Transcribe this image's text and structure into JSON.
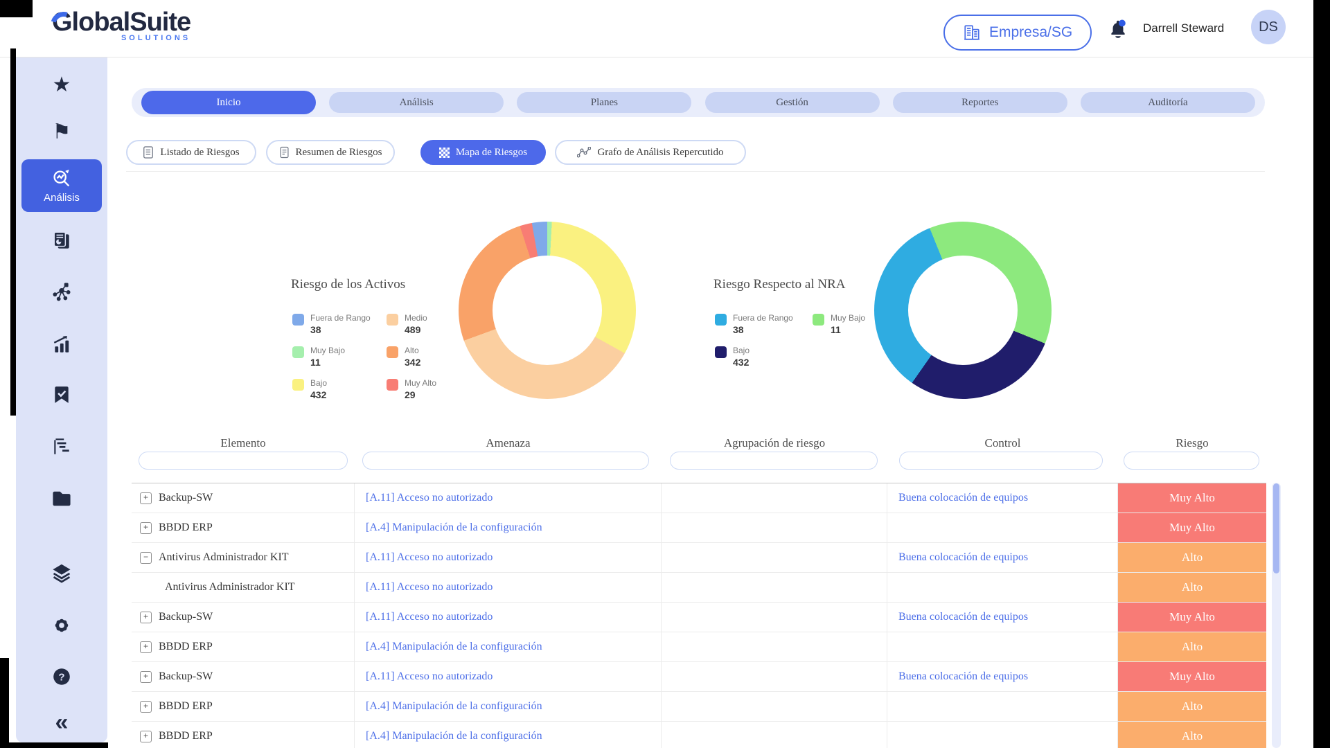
{
  "header": {
    "logo_text": "GlobalSuite",
    "logo_subtext": "SOLUTIONS",
    "company_button_label": "Empresa/SG",
    "user_name": "Darrell Steward",
    "avatar_initials": "DS",
    "accent_color": "#4a6fe8"
  },
  "sidebar": {
    "active_item_label": "Análisis",
    "icons": [
      "star",
      "flag",
      "analysis",
      "report",
      "network",
      "bar-chart",
      "bookmark-check",
      "gantt",
      "folder",
      "layers",
      "gear",
      "help",
      "collapse"
    ]
  },
  "tabs": [
    {
      "label": "Inicio",
      "active": true
    },
    {
      "label": "Análisis",
      "active": false
    },
    {
      "label": "Planes",
      "active": false
    },
    {
      "label": "Gestión",
      "active": false
    },
    {
      "label": "Reportes",
      "active": false
    },
    {
      "label": "Auditoría",
      "active": false
    }
  ],
  "subtabs": [
    {
      "label": "Listado de Riesgos",
      "active": false
    },
    {
      "label": "Resumen de Riesgos",
      "active": false
    },
    {
      "label": "Mapa de Riesgos",
      "active": true
    },
    {
      "label": "Grafo de Análisis Repercutido",
      "active": false
    }
  ],
  "chart_data": [
    {
      "type": "pie",
      "variant": "donut",
      "title": "Riesgo de los Activos",
      "legend_position": "left",
      "legend": [
        {
          "label": "Fuera de Rango",
          "value": 38,
          "color": "#7fa9e9"
        },
        {
          "label": "Medio",
          "value": 489,
          "color": "#fbcfa0"
        },
        {
          "label": "Muy Bajo",
          "value": 11,
          "color": "#a5efad"
        },
        {
          "label": "Alto",
          "value": 342,
          "color": "#f9a268"
        },
        {
          "label": "Bajo",
          "value": 432,
          "color": "#faf180"
        },
        {
          "label": "Muy Alto",
          "value": 29,
          "color": "#f87d74"
        }
      ],
      "segments_deg": [
        [
          "#a5efad",
          0,
          3
        ],
        [
          "#faf180",
          3,
          119
        ],
        [
          "#fbcfa0",
          119,
          250
        ],
        [
          "#f9a268",
          250,
          342
        ],
        [
          "#f87d74",
          342,
          350
        ],
        [
          "#7fa9e9",
          350,
          360
        ]
      ]
    },
    {
      "type": "pie",
      "variant": "donut",
      "title": "Riesgo Respecto al NRA",
      "legend_position": "left",
      "legend": [
        {
          "label": "Fuera de Rango",
          "value": 38,
          "color": "#2face1"
        },
        {
          "label": "Muy Bajo",
          "value": 11,
          "color": "#8de97e"
        },
        {
          "label": "Bajo",
          "value": 432,
          "color": "#201d6b"
        }
      ],
      "segments_deg": [
        [
          "#8de97e",
          0,
          112
        ],
        [
          "#201d6b",
          112,
          215
        ],
        [
          "#2face1",
          215,
          338
        ],
        [
          "#8de97e",
          338,
          360
        ]
      ]
    }
  ],
  "table": {
    "columns": [
      "Elemento",
      "Amenaza",
      "Agrupación de riesgo",
      "Control",
      "Riesgo"
    ],
    "filter_values": [
      "",
      "",
      "",
      "",
      ""
    ],
    "risk_colors": {
      "muy-alto": "#f87b76",
      "alto": "#fbad6c"
    },
    "rows": [
      {
        "expand": "plus",
        "child": false,
        "element": "Backup-SW",
        "amenaza": "[A.11] Acceso no autorizado",
        "agrupacion": "",
        "control": "Buena colocación de equipos",
        "riesgo": "Muy Alto",
        "riesgo_level": "muy-alto"
      },
      {
        "expand": "plus",
        "child": false,
        "element": "BBDD ERP",
        "amenaza": "[A.4] Manipulación de la configuración",
        "agrupacion": "",
        "control": "",
        "riesgo": "Muy Alto",
        "riesgo_level": "muy-alto"
      },
      {
        "expand": "minus",
        "child": false,
        "element": "Antivirus Administrador KIT",
        "amenaza": "[A.11] Acceso no autorizado",
        "agrupacion": "",
        "control": "Buena colocación de equipos",
        "riesgo": "Alto",
        "riesgo_level": "alto"
      },
      {
        "expand": "none",
        "child": true,
        "element": "Antivirus Administrador KIT",
        "amenaza": "[A.11] Acceso no autorizado",
        "agrupacion": "",
        "control": "",
        "riesgo": "Alto",
        "riesgo_level": "alto"
      },
      {
        "expand": "plus",
        "child": false,
        "element": "Backup-SW",
        "amenaza": "[A.11] Acceso no autorizado",
        "agrupacion": "",
        "control": "Buena colocación de equipos",
        "riesgo": "Muy Alto",
        "riesgo_level": "muy-alto"
      },
      {
        "expand": "plus",
        "child": false,
        "element": "BBDD ERP",
        "amenaza": "[A.4] Manipulación de la configuración",
        "agrupacion": "",
        "control": "",
        "riesgo": "Alto",
        "riesgo_level": "alto"
      },
      {
        "expand": "plus",
        "child": false,
        "element": "Backup-SW",
        "amenaza": "[A.11] Acceso no autorizado",
        "agrupacion": "",
        "control": "Buena colocación de equipos",
        "riesgo": "Muy Alto",
        "riesgo_level": "muy-alto"
      },
      {
        "expand": "plus",
        "child": false,
        "element": "BBDD ERP",
        "amenaza": "[A.4] Manipulación de la configuración",
        "agrupacion": "",
        "control": "",
        "riesgo": "Alto",
        "riesgo_level": "alto"
      },
      {
        "expand": "plus",
        "child": false,
        "element": "BBDD ERP",
        "amenaza": "[A.4] Manipulación de la configuración",
        "agrupacion": "",
        "control": "",
        "riesgo": "Alto",
        "riesgo_level": "alto"
      }
    ]
  }
}
